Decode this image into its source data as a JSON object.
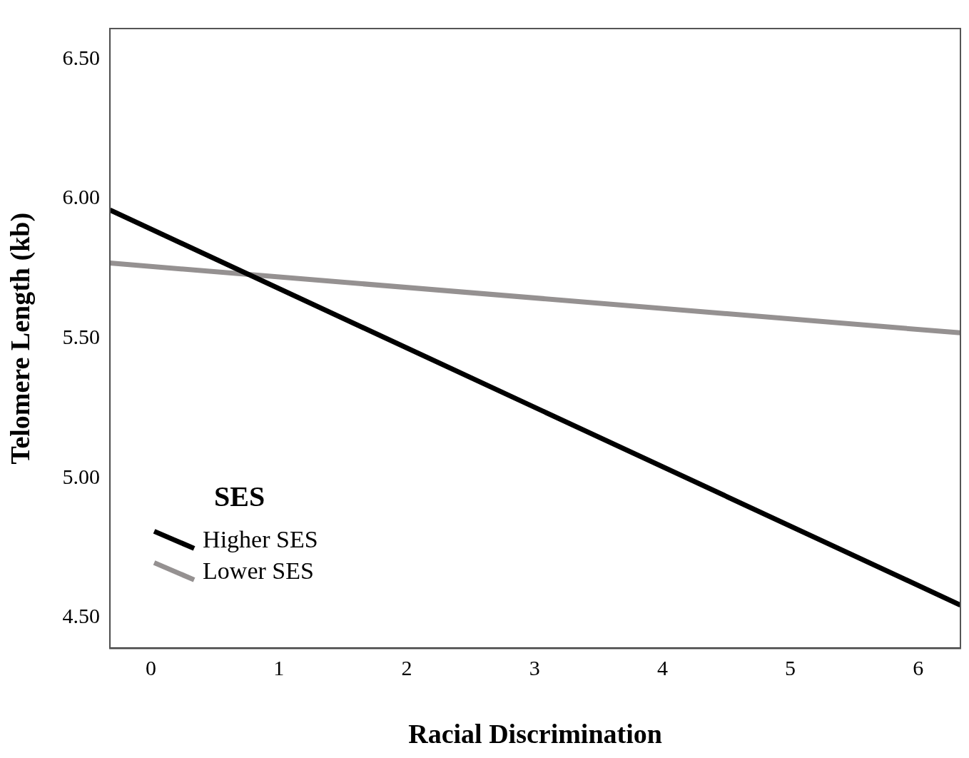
{
  "chart_data": {
    "type": "line",
    "xlabel": "Racial Discrimination",
    "ylabel": "Telomere Length (kb)",
    "legend_title": "SES",
    "legend": "bottom left",
    "grid": false,
    "marker": "none",
    "line_style": "solid",
    "x": [
      -0.32,
      6.33
    ],
    "xlim": [
      -0.32,
      6.33
    ],
    "xticks": [
      0,
      1,
      2,
      3,
      4,
      5,
      6
    ],
    "ylim": [
      4.39,
      6.61
    ],
    "yticks": [
      {
        "value": 4.5,
        "label": "4.50"
      },
      {
        "value": 5,
        "label": "5.00"
      },
      {
        "value": 5.5,
        "label": "5.50"
      },
      {
        "value": 6,
        "label": "6.00"
      },
      {
        "value": 6.5,
        "label": "6.50"
      }
    ],
    "series": [
      {
        "name": "Higher SES",
        "color": "#000000",
        "values": [
          5.96,
          4.545
        ]
      },
      {
        "name": "Lower SES",
        "color": "#959191",
        "values": [
          5.77,
          5.52
        ]
      }
    ]
  }
}
